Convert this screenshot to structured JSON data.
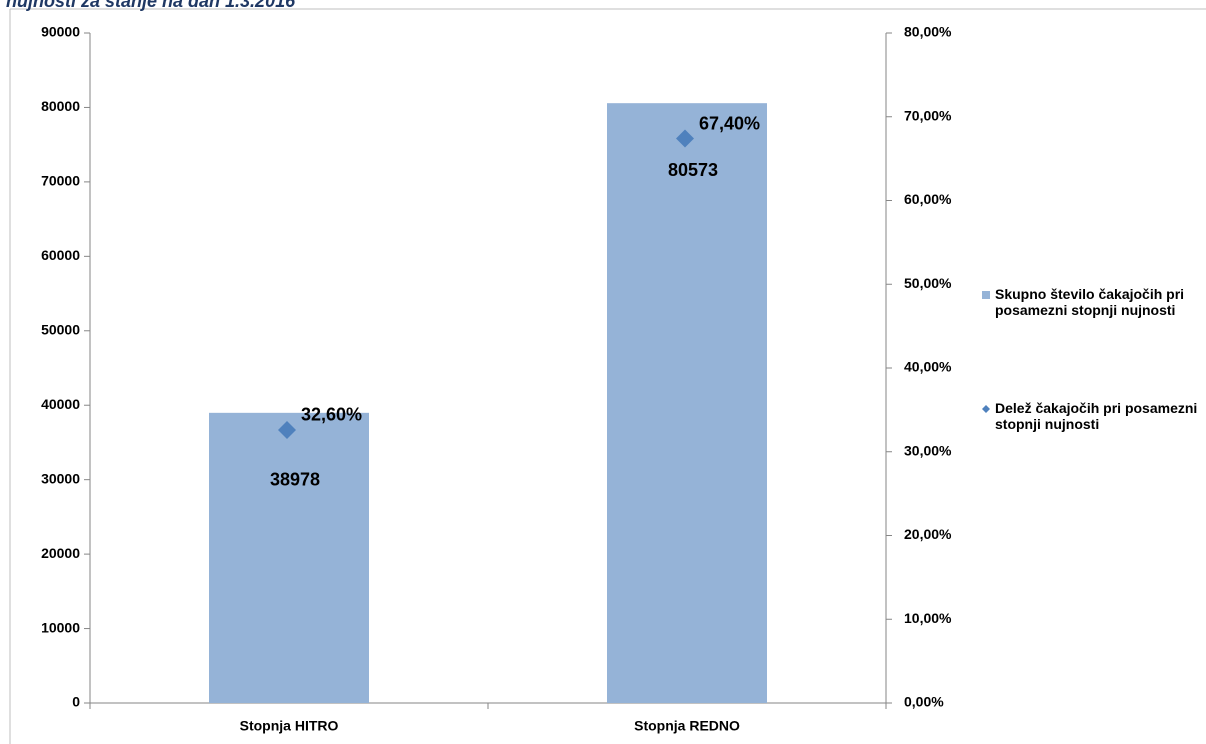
{
  "chart_data": {
    "type": "bar",
    "title": "nujnosti za stanje na dan 1.3.2016",
    "categories": [
      "Stopnja HITRO",
      "Stopnja REDNO"
    ],
    "series": [
      {
        "name": "Skupno število čakajočih pri posamezni stopnji nujnosti",
        "color": "#95b3d7",
        "values": [
          38978,
          80573
        ]
      },
      {
        "name": "Delež čakajočih pri posamezni stopnji nujnosti",
        "color": "#4f81bd",
        "axis": "y2",
        "values": [
          32.6,
          67.4
        ],
        "value_labels": [
          "32,60%",
          "67,40%"
        ]
      }
    ],
    "ylim": [
      0,
      90000
    ],
    "yticks": [
      0,
      10000,
      20000,
      30000,
      40000,
      50000,
      60000,
      70000,
      80000,
      90000
    ],
    "y2lim": [
      0,
      80
    ],
    "y2ticks": [
      {
        "value": 0,
        "label": "0,00%"
      },
      {
        "value": 10,
        "label": "10,00%"
      },
      {
        "value": 20,
        "label": "20,00%"
      },
      {
        "value": 30,
        "label": "30,00%"
      },
      {
        "value": 40,
        "label": "40,00%"
      },
      {
        "value": 50,
        "label": "50,00%"
      },
      {
        "value": 60,
        "label": "60,00%"
      },
      {
        "value": 70,
        "label": "70,00%"
      },
      {
        "value": 80,
        "label": "80,00%"
      }
    ],
    "legend": "right"
  }
}
